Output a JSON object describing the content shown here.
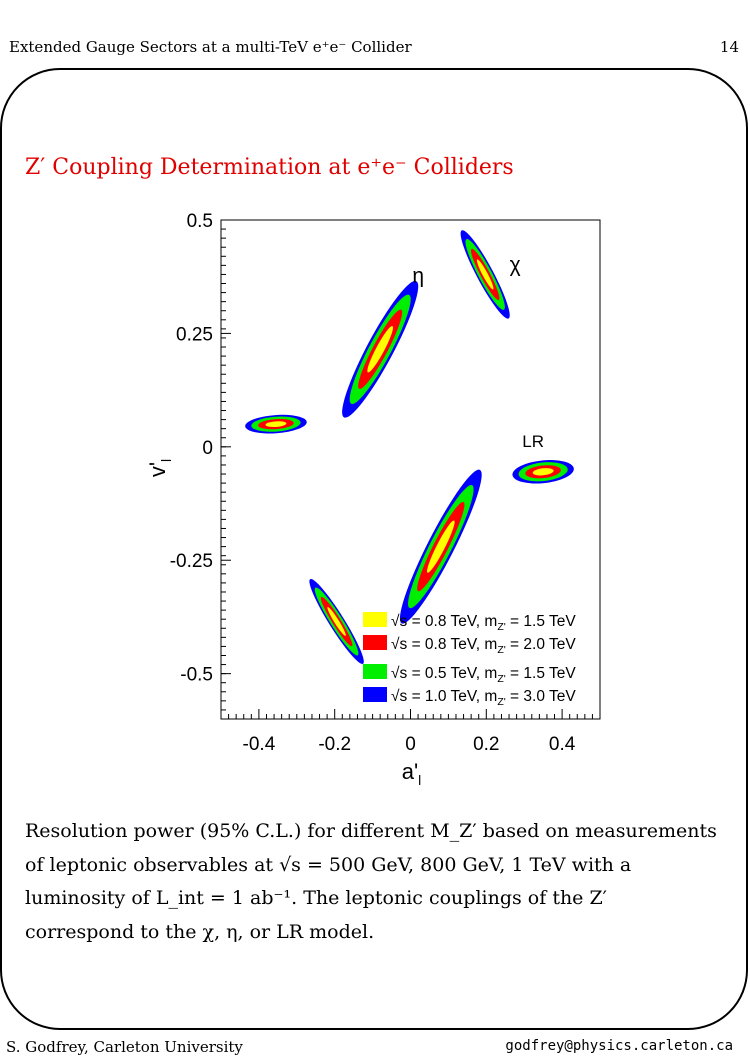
{
  "header": {
    "left": "Extended Gauge Sectors at a multi-TeV e⁺e⁻ Collider",
    "page_number": "14"
  },
  "slide_title": "Z′ Coupling Determination at e⁺e⁻ Colliders",
  "chart_data": {
    "type": "scatter",
    "xlabel": "a'l",
    "ylabel": "v'l",
    "xlim": [
      -0.5,
      0.5
    ],
    "ylim": [
      -0.6,
      0.5
    ],
    "x_ticks": [
      -0.4,
      -0.2,
      0,
      0.2,
      0.4
    ],
    "x_tick_labels": [
      "-0.4",
      "-0.2",
      "0",
      "0.2",
      "0.4"
    ],
    "y_ticks": [
      0.5,
      0.25,
      0,
      -0.25,
      -0.5
    ],
    "y_tick_labels": [
      "0.5",
      "0.25",
      "0",
      "-0.25",
      "-0.5"
    ],
    "grid": false,
    "legend_position": "bottom-right",
    "series": [
      {
        "name": "√s = 0.8 TeV, mZ' = 1.5 TeV",
        "color": "#ffff00"
      },
      {
        "name": "√s = 0.8 TeV, mZ' = 2.0 TeV",
        "color": "#ff0000"
      },
      {
        "name": "√s = 0.5 TeV, mZ' = 1.5 TeV",
        "color": "#00ee00"
      },
      {
        "name": "√s = 1.0 TeV, mZ' = 3.0 TeV",
        "color": "#0000ff"
      }
    ],
    "legend": [
      {
        "text": "√s = 0.8 TeV, m",
        "sub": "Z'",
        "rest": " = 1.5 TeV",
        "color": "#ffff00"
      },
      {
        "text": "√s = 0.8 TeV, m",
        "sub": "Z'",
        "rest": " = 2.0 TeV",
        "color": "#ff0000"
      },
      {
        "text": "√s = 0.5 TeV, m",
        "sub": "Z'",
        "rest": " = 1.5 TeV",
        "color": "#00ee00"
      },
      {
        "text": "√s = 1.0 TeV, m",
        "sub": "Z'",
        "rest": " = 3.0 TeV",
        "color": "#0000ff"
      }
    ],
    "contours": [
      {
        "label": "χ",
        "center": [
          0.197,
          0.38
        ],
        "semi_axes": [
          0.11,
          0.022
        ],
        "angle_deg": -62
      },
      {
        "label": "η",
        "center": [
          -0.08,
          0.215
        ],
        "semi_axes": [
          0.17,
          0.035
        ],
        "angle_deg": 62
      },
      {
        "label": "",
        "center": [
          -0.355,
          0.05
        ],
        "semi_axes": [
          0.068,
          0.024
        ],
        "angle_deg": 4
      },
      {
        "label": "LR",
        "center": [
          0.35,
          -0.055
        ],
        "semi_axes": [
          0.068,
          0.03
        ],
        "angle_deg": 6
      },
      {
        "label": "",
        "center": [
          0.08,
          -0.22
        ],
        "semi_axes": [
          0.19,
          0.035
        ],
        "angle_deg": 63
      },
      {
        "label": "",
        "center": [
          -0.195,
          -0.385
        ],
        "semi_axes": [
          0.11,
          0.02
        ],
        "angle_deg": -58
      }
    ]
  },
  "caption": {
    "line1": "Resolution power (95% C.L.) for different M_Z′ based on measurements",
    "line2": "of leptonic observables at √s = 500 GeV, 800 GeV, 1 TeV with a",
    "line3": "luminosity of L_int = 1 ab⁻¹. The leptonic couplings of the Z′",
    "line4": "correspond to the χ, η, or LR model."
  },
  "footer": {
    "left": "S. Godfrey, Carleton University",
    "right": "godfrey@physics.carleton.ca"
  }
}
